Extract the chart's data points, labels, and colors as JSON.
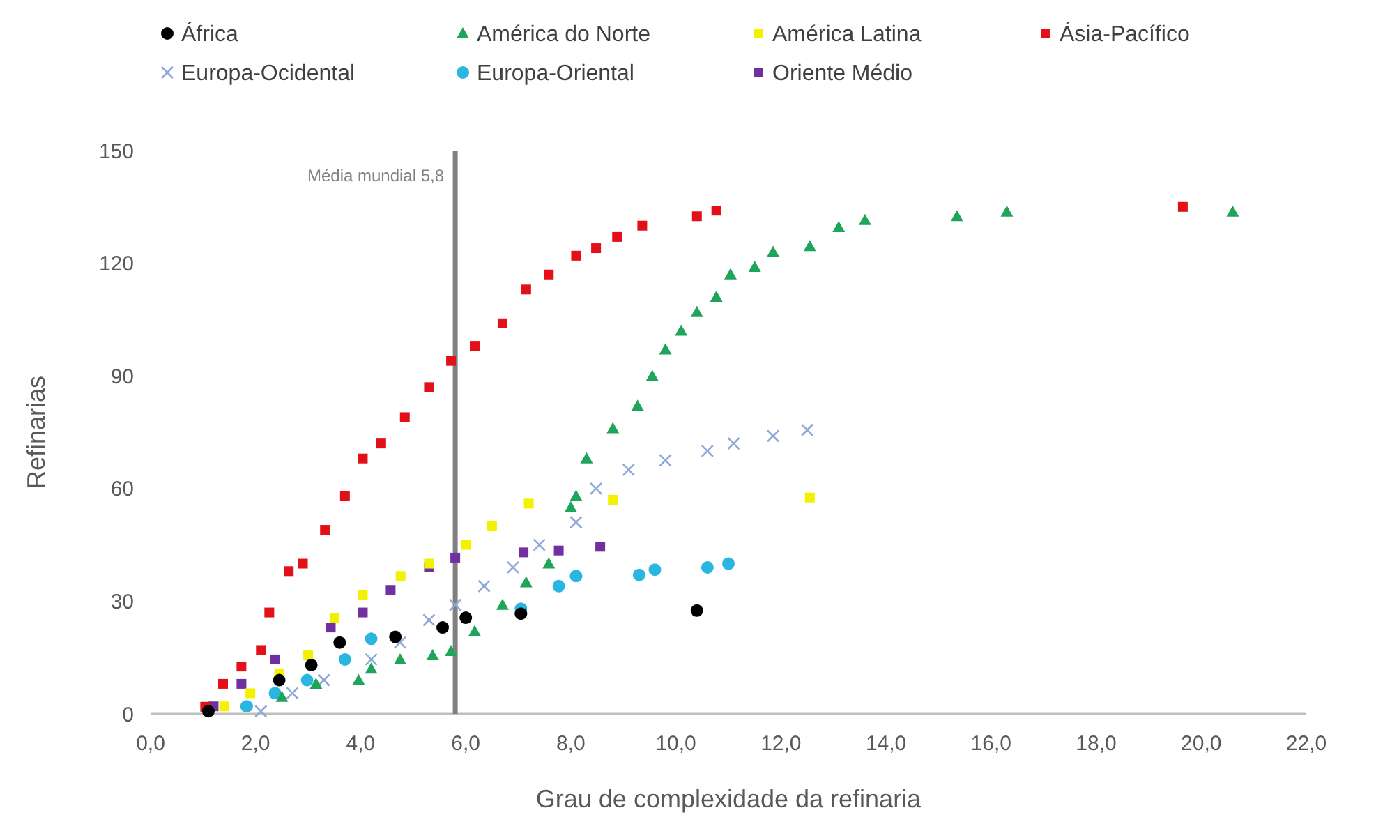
{
  "chart_data": {
    "type": "scatter",
    "xlabel": "Grau de complexidade da refinaria",
    "ylabel": "Refinarias",
    "legend": "top",
    "xlim": [
      0,
      22
    ],
    "xticks": [
      {
        "value": 0,
        "label": "0,0"
      },
      {
        "value": 2,
        "label": "2,0"
      },
      {
        "value": 4,
        "label": "4,0"
      },
      {
        "value": 6,
        "label": "6,0"
      },
      {
        "value": 8,
        "label": "8,0"
      },
      {
        "value": 10,
        "label": "10,0"
      },
      {
        "value": 12,
        "label": "12,0"
      },
      {
        "value": 14,
        "label": "14,0"
      },
      {
        "value": 16,
        "label": "16,0"
      },
      {
        "value": 18,
        "label": "18,0"
      },
      {
        "value": 20,
        "label": "20,0"
      },
      {
        "value": 22,
        "label": "22,0"
      }
    ],
    "ylim": [
      0,
      150
    ],
    "yticks": [
      0,
      30,
      60,
      90,
      120,
      150
    ],
    "ref_lines": [
      {
        "axis": "x",
        "value": 5.8,
        "label": "Média mundial 5,8",
        "color": "#808080"
      }
    ],
    "series": [
      {
        "name": "África",
        "color": "#000000",
        "marker": "circle",
        "x": [
          1.1,
          2.45,
          3.06,
          3.6,
          4.66,
          5.56,
          6.0,
          7.05,
          10.4
        ],
        "values": [
          0.7,
          9,
          13,
          19,
          20.5,
          23,
          25.6,
          26.7,
          27.5
        ]
      },
      {
        "name": "América do Norte",
        "color": "#1fa55a",
        "marker": "triangle",
        "x": [
          2.5,
          3.15,
          3.96,
          4.2,
          4.75,
          5.37,
          5.72,
          6.17,
          6.7,
          7.15,
          7.58,
          8.0,
          8.1,
          8.3,
          8.8,
          9.27,
          9.55,
          9.8,
          10.1,
          10.4,
          10.77,
          11.04,
          11.5,
          11.85,
          12.55,
          13.1,
          13.6,
          15.35,
          16.3,
          20.6
        ],
        "values": [
          4.5,
          8,
          9,
          12,
          14.5,
          15.6,
          16.7,
          22,
          29,
          35,
          40,
          55,
          58,
          68,
          76,
          82,
          90,
          97,
          102,
          107,
          111,
          117,
          119,
          123,
          124.5,
          129.6,
          131.5,
          132.5,
          133.7,
          133.7
        ]
      },
      {
        "name": "América Latina",
        "color": "#f2f200",
        "marker": "square",
        "x": [
          1.4,
          1.9,
          2.45,
          3.0,
          3.5,
          4.04,
          4.76,
          5.3,
          6.0,
          6.5,
          7.2,
          8.8,
          12.55
        ],
        "values": [
          2,
          5.5,
          10.7,
          15.6,
          25.5,
          31.6,
          36.7,
          40,
          45,
          50,
          56,
          57,
          57.6
        ]
      },
      {
        "name": "Ásia-Pacífico",
        "color": "#e3101a",
        "marker": "square",
        "x": [
          1.04,
          1.38,
          1.73,
          2.1,
          2.26,
          2.63,
          2.9,
          3.32,
          3.7,
          4.04,
          4.39,
          4.84,
          5.3,
          5.72,
          6.17,
          6.7,
          7.15,
          7.58,
          8.1,
          8.48,
          8.88,
          9.36,
          10.4,
          10.77,
          19.65
        ],
        "values": [
          1.9,
          8,
          12.6,
          17,
          27,
          38,
          40,
          49,
          58,
          68,
          72,
          79,
          87,
          94,
          98,
          104,
          113,
          117,
          122,
          124,
          127,
          130,
          132.5,
          134,
          135
        ]
      },
      {
        "name": "Europa-Ocidental",
        "color": "#8fa8d8",
        "marker": "cross",
        "x": [
          2.1,
          2.7,
          3.3,
          4.2,
          4.75,
          5.3,
          5.8,
          6.35,
          6.9,
          7.4,
          8.1,
          8.48,
          9.1,
          9.8,
          10.6,
          11.1,
          11.85,
          12.5
        ],
        "values": [
          0.7,
          5.5,
          9,
          14.5,
          19,
          25,
          29,
          34,
          39,
          45,
          51,
          60,
          65,
          67.5,
          70,
          72,
          74,
          75.6
        ]
      },
      {
        "name": "Europa-Oriental",
        "color": "#29b6e0",
        "marker": "circle",
        "x": [
          1.83,
          2.37,
          2.98,
          3.7,
          4.2,
          7.05,
          7.77,
          8.1,
          9.3,
          9.6,
          10.6,
          11.0
        ],
        "values": [
          2,
          5.5,
          9,
          14.5,
          20,
          28,
          34,
          36.7,
          37,
          38.4,
          39,
          40
        ]
      },
      {
        "name": "Oriente Médio",
        "color": "#7030a0",
        "marker": "square",
        "x": [
          1.2,
          1.73,
          2.37,
          3.43,
          4.04,
          4.57,
          5.3,
          5.8,
          7.1,
          7.77,
          8.56
        ],
        "values": [
          2,
          8,
          14.5,
          23,
          27,
          33,
          39,
          41.6,
          43,
          43.5,
          44.5
        ]
      }
    ]
  }
}
